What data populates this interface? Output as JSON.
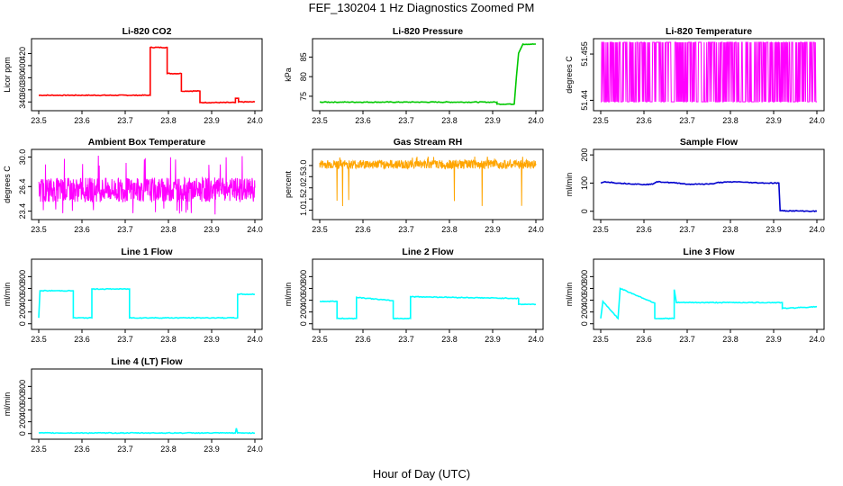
{
  "title": "FEF_130204  1 Hz Diagnostics Zoomed PM",
  "xlabel": "Hour of Day (UTC)",
  "colors": {
    "red": "#ff0000",
    "green": "#00c800",
    "magenta": "#ff00ff",
    "orange": "#ffa500",
    "blue": "#0000cd",
    "cyan": "#00ffff"
  },
  "chart_data": [
    {
      "type": "line",
      "title": "Li-820 CO2",
      "ylabel": "Licor ppm",
      "color": "red",
      "xlim": [
        23.5,
        24.0
      ],
      "ylim": [
        330,
        440
      ],
      "yticks": [
        340,
        360,
        380,
        400,
        420
      ],
      "xticks": [
        "23.5",
        "23.6",
        "23.7",
        "23.8",
        "23.9",
        "24.0"
      ],
      "series": [
        {
          "name": "CO2",
          "x": [
            23.5,
            23.758,
            23.758,
            23.797,
            23.797,
            23.83,
            23.83,
            23.873,
            23.873,
            23.955,
            23.955,
            23.962,
            23.962,
            24.0
          ],
          "y": [
            351,
            351,
            430,
            430,
            387,
            387,
            358,
            358,
            339,
            339,
            346,
            346,
            340,
            340
          ]
        }
      ]
    },
    {
      "type": "line",
      "title": "Li-820 Pressure",
      "ylabel": "kPa",
      "color": "green",
      "xlim": [
        23.5,
        24.0
      ],
      "ylim": [
        72,
        89
      ],
      "yticks": [
        75,
        80,
        85
      ],
      "xticks": [
        "23.5",
        "23.6",
        "23.7",
        "23.8",
        "23.9",
        "24.0"
      ],
      "series": [
        {
          "name": "Pressure",
          "x": [
            23.5,
            23.91,
            23.91,
            23.95,
            23.955,
            23.96,
            23.97,
            24.0
          ],
          "y": [
            73.5,
            73.5,
            73.0,
            73.0,
            80.0,
            86.0,
            88.3,
            88.3
          ]
        }
      ]
    },
    {
      "type": "line",
      "title": "Li-820 Temperature",
      "ylabel": "degrees C",
      "color": "magenta",
      "xlim": [
        23.5,
        24.0
      ],
      "ylim": [
        51.4375,
        51.4591
      ],
      "yticks": [
        51.44,
        51.455
      ],
      "xticks": [
        "23.5",
        "23.6",
        "23.7",
        "23.8",
        "23.9",
        "24.0"
      ],
      "series": [
        {
          "name": "Temperature",
          "pattern": "toggle",
          "low": 51.4395,
          "high": 51.4588
        }
      ]
    },
    {
      "type": "line",
      "title": "Ambient Box Temperature",
      "ylabel": "degrees C",
      "color": "magenta",
      "xlim": [
        23.5,
        24.0
      ],
      "ylim": [
        22.7,
        30.6
      ],
      "yticks": [
        23.4,
        26.4,
        30.0
      ],
      "ytick_labels": [
        "23.4",
        "26.4",
        "30.0"
      ],
      "xticks": [
        "23.5",
        "23.6",
        "23.7",
        "23.8",
        "23.9",
        "24.0"
      ],
      "series": [
        {
          "name": "Ambient",
          "pattern": "noise",
          "mean": 26.0,
          "spread": 1.5,
          "spike_low": 23.0,
          "spike_high": 30.2
        }
      ]
    },
    {
      "type": "line",
      "title": "Gas Stream RH",
      "ylabel": "percent",
      "color": "orange",
      "xlim": [
        23.5,
        24.0
      ],
      "ylim": [
        0.7,
        3.6
      ],
      "yticks": [
        1.0,
        1.5,
        2.0,
        2.5,
        3.0
      ],
      "ytick_labels": [
        "1.0",
        "1.5",
        "2.0",
        "2.5",
        "3.0"
      ],
      "xticks": [
        "23.5",
        "23.6",
        "23.7",
        "23.8",
        "23.9",
        "24.0"
      ],
      "series": [
        {
          "name": "RH",
          "pattern": "noise",
          "mean": 3.05,
          "spread": 0.2,
          "spike_low": 0.9,
          "spike_high": 3.4
        }
      ]
    },
    {
      "type": "line",
      "title": "Sample Flow",
      "ylabel": "ml/min",
      "color": "blue",
      "xlim": [
        23.5,
        24.0
      ],
      "ylim": [
        -20,
        210
      ],
      "yticks": [
        0,
        100,
        200
      ],
      "xticks": [
        "23.5",
        "23.6",
        "23.7",
        "23.8",
        "23.9",
        "24.0"
      ],
      "series": [
        {
          "name": "Sample",
          "x": [
            23.5,
            23.51,
            23.54,
            23.6,
            23.62,
            23.63,
            23.68,
            23.7,
            23.76,
            23.77,
            23.82,
            23.83,
            23.88,
            23.912,
            23.915,
            24.0
          ],
          "y": [
            100,
            105,
            100,
            95,
            96,
            105,
            100,
            96,
            97,
            102,
            105,
            103,
            100,
            100,
            2,
            0
          ]
        }
      ]
    },
    {
      "type": "line",
      "title": "Line 1 Flow",
      "ylabel": "ml/min",
      "color": "cyan",
      "xlim": [
        23.5,
        24.0
      ],
      "ylim": [
        -50,
        1050
      ],
      "yticks": [
        0,
        200,
        400,
        600,
        800
      ],
      "ytick_labels": [
        "0",
        "200",
        "400",
        "600",
        "800"
      ],
      "xticks": [
        "23.5",
        "23.6",
        "23.7",
        "23.8",
        "23.9",
        "24.0"
      ],
      "series": [
        {
          "name": "Line 1",
          "x": [
            23.5,
            23.503,
            23.58,
            23.58,
            23.623,
            23.623,
            23.71,
            23.71,
            23.96,
            23.96,
            24.0
          ],
          "y": [
            100,
            560,
            560,
            100,
            100,
            590,
            590,
            100,
            100,
            500,
            500
          ]
        }
      ]
    },
    {
      "type": "line",
      "title": "Line 2 Flow",
      "ylabel": "ml/min",
      "color": "cyan",
      "xlim": [
        23.5,
        24.0
      ],
      "ylim": [
        -50,
        1050
      ],
      "yticks": [
        0,
        200,
        400,
        600,
        800
      ],
      "ytick_labels": [
        "0",
        "200",
        "400",
        "600",
        "800"
      ],
      "xticks": [
        "23.5",
        "23.6",
        "23.7",
        "23.8",
        "23.9",
        "24.0"
      ],
      "series": [
        {
          "name": "Line 2",
          "x": [
            23.5,
            23.5,
            23.54,
            23.54,
            23.585,
            23.585,
            23.67,
            23.67,
            23.71,
            23.71,
            23.96,
            23.96,
            24.0
          ],
          "y": [
            380,
            380,
            380,
            90,
            90,
            450,
            390,
            90,
            90,
            460,
            430,
            330,
            330
          ]
        }
      ]
    },
    {
      "type": "line",
      "title": "Line 3 Flow",
      "ylabel": "ml/min",
      "color": "cyan",
      "xlim": [
        23.5,
        24.0
      ],
      "ylim": [
        -50,
        1050
      ],
      "yticks": [
        0,
        200,
        400,
        600,
        800
      ],
      "ytick_labels": [
        "0",
        "200",
        "400",
        "600",
        "800"
      ],
      "xticks": [
        "23.5",
        "23.6",
        "23.7",
        "23.8",
        "23.9",
        "24.0"
      ],
      "series": [
        {
          "name": "Line 3",
          "x": [
            23.5,
            23.505,
            23.54,
            23.54,
            23.545,
            23.625,
            23.625,
            23.67,
            23.67,
            23.675,
            23.92,
            23.92,
            24.0
          ],
          "y": [
            90,
            380,
            90,
            90,
            600,
            350,
            90,
            90,
            580,
            360,
            360,
            260,
            290
          ]
        }
      ]
    },
    {
      "type": "line",
      "title": "Line 4 (LT) Flow",
      "ylabel": "ml/min",
      "color": "cyan",
      "xlim": [
        23.5,
        24.0
      ],
      "ylim": [
        -50,
        1050
      ],
      "yticks": [
        0,
        200,
        400,
        600,
        800
      ],
      "ytick_labels": [
        "0",
        "200",
        "400",
        "600",
        "800"
      ],
      "xticks": [
        "23.5",
        "23.6",
        "23.7",
        "23.8",
        "23.9",
        "24.0"
      ],
      "series": [
        {
          "name": "Line 4",
          "x": [
            23.5,
            23.955,
            23.957,
            23.96,
            24.0
          ],
          "y": [
            10,
            10,
            90,
            10,
            10
          ]
        }
      ]
    }
  ]
}
